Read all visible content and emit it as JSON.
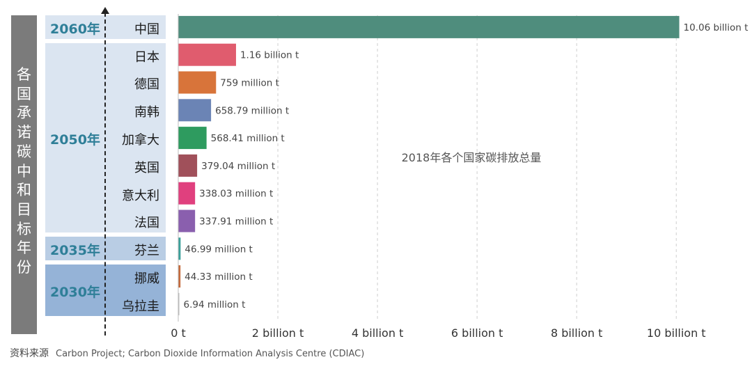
{
  "vertical_title": "各国承诺碳中和目标年份",
  "groups": [
    {
      "year": "2060年",
      "bg": "#dbe5f1",
      "year_color": "#2f7f98",
      "countries": [
        "中国"
      ]
    },
    {
      "year": "2050年",
      "bg": "#dbe5f1",
      "year_color": "#2f7f98",
      "countries": [
        "日本",
        "德国",
        "南韩",
        "加拿大",
        "英国",
        "意大利",
        "法国"
      ]
    },
    {
      "year": "2035年",
      "bg": "#b9cde4",
      "year_color": "#2f7f98",
      "countries": [
        "芬兰"
      ]
    },
    {
      "year": "2030年",
      "bg": "#95b3d7",
      "year_color": "#2f7f98",
      "countries": [
        "挪威",
        "乌拉圭"
      ]
    }
  ],
  "chart_data": {
    "type": "bar",
    "orientation": "horizontal",
    "title": "2018年各个国家碳排放总量",
    "categories": [
      "中国",
      "日本",
      "德国",
      "南韩",
      "加拿大",
      "英国",
      "意大利",
      "法国",
      "芬兰",
      "挪威",
      "乌拉圭"
    ],
    "values": [
      10.06,
      1.16,
      0.759,
      0.65879,
      0.56841,
      0.37904,
      0.33803,
      0.33791,
      0.04699,
      0.04433,
      0.00694
    ],
    "unit": "billion t",
    "data_labels": [
      "10.06 billion t",
      "1.16 billion t",
      "759 million t",
      "658.79 million t",
      "568.41 million t",
      "379.04 million t",
      "338.03 million t",
      "337.91 million t",
      "46.99 million t",
      "44.33 million t",
      "6.94 million t"
    ],
    "colors": [
      "#4f8d7d",
      "#e05c6e",
      "#d8743a",
      "#6b84b5",
      "#2e9b5f",
      "#a0505a",
      "#e0407e",
      "#8a5fae",
      "#3aa09a",
      "#c46a3c",
      "#b8b8b8"
    ],
    "xlim": [
      0,
      10.5
    ],
    "xticks": [
      0,
      2,
      4,
      6,
      8,
      10
    ],
    "xtick_labels": [
      "0 t",
      "2 billion t",
      "4 billion t",
      "6 billion t",
      "8 billion t",
      "10 billion t"
    ],
    "grid": true,
    "grid_axis": "x"
  },
  "source": {
    "label": "资料来源",
    "text": "Carbon Project; Carbon Dioxide Information Analysis Centre (CDIAC)"
  }
}
